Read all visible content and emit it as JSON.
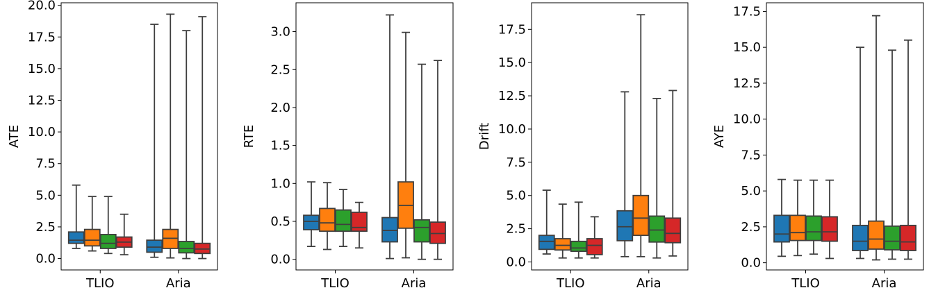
{
  "chart_data": [
    {
      "type": "box",
      "title": "",
      "xlabel": "",
      "ylabel": "ATE",
      "categories": [
        "TLIO",
        "Aria"
      ],
      "ylim": [
        -0.9,
        20.2
      ],
      "yticks": [
        0.0,
        2.5,
        5.0,
        7.5,
        10.0,
        12.5,
        15.0,
        17.5,
        20.0
      ],
      "ytick_labels": [
        "0.0",
        "2.5",
        "5.0",
        "7.5",
        "10.0",
        "12.5",
        "15.0",
        "17.5",
        "20.0"
      ],
      "grid": false,
      "series": [
        {
          "color": "#1f77b4",
          "boxes": [
            {
              "category": "TLIO",
              "min": 0.8,
              "q1": 1.2,
              "median": 1.45,
              "q3": 2.1,
              "max": 5.8
            },
            {
              "category": "Aria",
              "min": 0.1,
              "q1": 0.5,
              "median": 0.9,
              "q3": 1.45,
              "max": 18.5
            }
          ]
        },
        {
          "color": "#ff7f0e",
          "boxes": [
            {
              "category": "TLIO",
              "min": 0.6,
              "q1": 1.0,
              "median": 1.45,
              "q3": 2.3,
              "max": 4.9
            },
            {
              "category": "Aria",
              "min": 0.05,
              "q1": 0.8,
              "median": 1.6,
              "q3": 2.3,
              "max": 19.3
            }
          ]
        },
        {
          "color": "#2ca02c",
          "boxes": [
            {
              "category": "TLIO",
              "min": 0.4,
              "q1": 0.8,
              "median": 1.2,
              "q3": 1.9,
              "max": 4.9
            },
            {
              "category": "Aria",
              "min": 0.0,
              "q1": 0.45,
              "median": 0.8,
              "q3": 1.35,
              "max": 18.0
            }
          ]
        },
        {
          "color": "#d62728",
          "boxes": [
            {
              "category": "TLIO",
              "min": 0.3,
              "q1": 0.9,
              "median": 1.3,
              "q3": 1.7,
              "max": 3.5
            },
            {
              "category": "Aria",
              "min": 0.0,
              "q1": 0.4,
              "median": 0.75,
              "q3": 1.2,
              "max": 19.1
            }
          ]
        }
      ]
    },
    {
      "type": "box",
      "title": "",
      "xlabel": "",
      "ylabel": "RTE",
      "categories": [
        "TLIO",
        "Aria"
      ],
      "ylim": [
        -0.14,
        3.38
      ],
      "yticks": [
        0.0,
        0.5,
        1.0,
        1.5,
        2.0,
        2.5,
        3.0
      ],
      "ytick_labels": [
        "0.0",
        "0.5",
        "1.0",
        "1.5",
        "2.0",
        "2.5",
        "3.0"
      ],
      "grid": false,
      "series": [
        {
          "color": "#1f77b4",
          "boxes": [
            {
              "category": "TLIO",
              "min": 0.17,
              "q1": 0.39,
              "median": 0.5,
              "q3": 0.58,
              "max": 1.02
            },
            {
              "category": "Aria",
              "min": 0.01,
              "q1": 0.23,
              "median": 0.38,
              "q3": 0.55,
              "max": 3.22
            }
          ]
        },
        {
          "color": "#ff7f0e",
          "boxes": [
            {
              "category": "TLIO",
              "min": 0.13,
              "q1": 0.37,
              "median": 0.48,
              "q3": 0.67,
              "max": 1.01
            },
            {
              "category": "Aria",
              "min": 0.02,
              "q1": 0.41,
              "median": 0.71,
              "q3": 1.02,
              "max": 2.99
            }
          ]
        },
        {
          "color": "#2ca02c",
          "boxes": [
            {
              "category": "TLIO",
              "min": 0.17,
              "q1": 0.37,
              "median": 0.46,
              "q3": 0.65,
              "max": 0.92
            },
            {
              "category": "Aria",
              "min": 0.0,
              "q1": 0.23,
              "median": 0.42,
              "q3": 0.52,
              "max": 2.57
            }
          ]
        },
        {
          "color": "#d62728",
          "boxes": [
            {
              "category": "TLIO",
              "min": 0.15,
              "q1": 0.37,
              "median": 0.42,
              "q3": 0.62,
              "max": 0.75
            },
            {
              "category": "Aria",
              "min": 0.0,
              "q1": 0.21,
              "median": 0.34,
              "q3": 0.49,
              "max": 2.62
            }
          ]
        }
      ]
    },
    {
      "type": "box",
      "title": "",
      "xlabel": "",
      "ylabel": "Drift",
      "categories": [
        "TLIO",
        "Aria"
      ],
      "ylim": [
        -0.6,
        19.5
      ],
      "yticks": [
        0.0,
        2.5,
        5.0,
        7.5,
        10.0,
        12.5,
        15.0,
        17.5
      ],
      "ytick_labels": [
        "0.0",
        "2.5",
        "5.0",
        "7.5",
        "10.0",
        "12.5",
        "15.0",
        "17.5"
      ],
      "grid": false,
      "series": [
        {
          "color": "#1f77b4",
          "boxes": [
            {
              "category": "TLIO",
              "min": 0.6,
              "q1": 0.95,
              "median": 1.55,
              "q3": 2.0,
              "max": 5.4
            },
            {
              "category": "Aria",
              "min": 0.4,
              "q1": 1.6,
              "median": 2.65,
              "q3": 3.85,
              "max": 12.8
            }
          ]
        },
        {
          "color": "#ff7f0e",
          "boxes": [
            {
              "category": "TLIO",
              "min": 0.3,
              "q1": 0.9,
              "median": 1.25,
              "q3": 1.75,
              "max": 4.35
            },
            {
              "category": "Aria",
              "min": 0.4,
              "q1": 2.0,
              "median": 3.3,
              "q3": 5.0,
              "max": 18.6
            }
          ]
        },
        {
          "color": "#2ca02c",
          "boxes": [
            {
              "category": "TLIO",
              "min": 0.3,
              "q1": 0.8,
              "median": 1.05,
              "q3": 1.55,
              "max": 4.5
            },
            {
              "category": "Aria",
              "min": 0.3,
              "q1": 1.5,
              "median": 2.4,
              "q3": 3.45,
              "max": 12.3
            }
          ]
        },
        {
          "color": "#d62728",
          "boxes": [
            {
              "category": "TLIO",
              "min": 0.3,
              "q1": 0.55,
              "median": 1.25,
              "q3": 1.75,
              "max": 3.4
            },
            {
              "category": "Aria",
              "min": 0.45,
              "q1": 1.45,
              "median": 2.15,
              "q3": 3.3,
              "max": 12.9
            }
          ]
        }
      ]
    },
    {
      "type": "box",
      "title": "",
      "xlabel": "",
      "ylabel": "AYE",
      "categories": [
        "TLIO",
        "Aria"
      ],
      "ylim": [
        -0.5,
        18.1
      ],
      "yticks": [
        0.0,
        2.5,
        5.0,
        7.5,
        10.0,
        12.5,
        15.0,
        17.5
      ],
      "ytick_labels": [
        "0.0",
        "2.5",
        "5.0",
        "7.5",
        "10.0",
        "12.5",
        "15.0",
        "17.5"
      ],
      "grid": false,
      "series": [
        {
          "color": "#1f77b4",
          "boxes": [
            {
              "category": "TLIO",
              "min": 0.45,
              "q1": 1.45,
              "median": 2.0,
              "q3": 3.3,
              "max": 5.8
            },
            {
              "category": "Aria",
              "min": 0.3,
              "q1": 0.85,
              "median": 1.5,
              "q3": 2.6,
              "max": 15.0
            }
          ]
        },
        {
          "color": "#ff7f0e",
          "boxes": [
            {
              "category": "TLIO",
              "min": 0.5,
              "q1": 1.55,
              "median": 2.1,
              "q3": 3.3,
              "max": 5.75
            },
            {
              "category": "Aria",
              "min": 0.2,
              "q1": 0.95,
              "median": 1.65,
              "q3": 2.9,
              "max": 17.2
            }
          ]
        },
        {
          "color": "#2ca02c",
          "boxes": [
            {
              "category": "TLIO",
              "min": 0.6,
              "q1": 1.55,
              "median": 2.15,
              "q3": 3.25,
              "max": 5.75
            },
            {
              "category": "Aria",
              "min": 0.25,
              "q1": 0.9,
              "median": 1.5,
              "q3": 2.55,
              "max": 14.8
            }
          ]
        },
        {
          "color": "#d62728",
          "boxes": [
            {
              "category": "TLIO",
              "min": 0.3,
              "q1": 1.5,
              "median": 2.15,
              "q3": 3.2,
              "max": 5.75
            },
            {
              "category": "Aria",
              "min": 0.25,
              "q1": 0.85,
              "median": 1.45,
              "q3": 2.6,
              "max": 15.5
            }
          ]
        }
      ]
    }
  ]
}
